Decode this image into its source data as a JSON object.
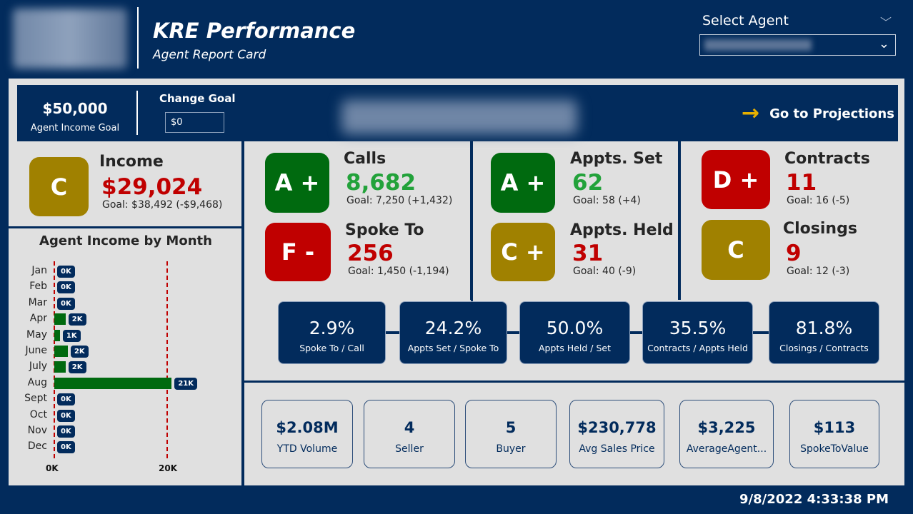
{
  "header": {
    "title": "KRE Performance",
    "subtitle": "Agent Report Card",
    "select_label": "Select Agent"
  },
  "goal_band": {
    "goal_value": "$50,000",
    "goal_label": "Agent Income Goal",
    "change_goal_label": "Change Goal",
    "change_goal_value": "$0",
    "projections_label": "Go to Projections"
  },
  "colors": {
    "navy": "#022b5c",
    "panel": "#e0e0e0",
    "grade_green": "#006a0f",
    "grade_gold": "#a08100",
    "grade_red": "#c00000",
    "value_green": "#22a23a",
    "value_red": "#c00000"
  },
  "metrics": {
    "income": {
      "grade": "C",
      "title": "Income",
      "value": "$29,024",
      "goal": "Goal: $38,492 (-$9,468)"
    },
    "calls": {
      "grade": "A +",
      "title": "Calls",
      "value": "8,682",
      "goal": "Goal: 7,250 (+1,432)"
    },
    "spoke_to": {
      "grade": "F -",
      "title": "Spoke To",
      "value": "256",
      "goal": "Goal: 1,450 (-1,194)"
    },
    "appts_set": {
      "grade": "A +",
      "title": "Appts. Set",
      "value": "62",
      "goal": "Goal: 58 (+4)"
    },
    "appts_held": {
      "grade": "C +",
      "title": "Appts. Held",
      "value": "31",
      "goal": "Goal: 40 (-9)"
    },
    "contracts": {
      "grade": "D +",
      "title": "Contracts",
      "value": "11",
      "goal": "Goal: 16 (-5)"
    },
    "closings": {
      "grade": "C",
      "title": "Closings",
      "value": "9",
      "goal": "Goal: 12 (-3)"
    }
  },
  "ratios": [
    {
      "value": "2.9%",
      "label": "Spoke To / Call"
    },
    {
      "value": "24.2%",
      "label": "Appts Set / Spoke To"
    },
    {
      "value": "50.0%",
      "label": "Appts Held / Set"
    },
    {
      "value": "35.5%",
      "label": "Contracts / Appts Held"
    },
    {
      "value": "81.8%",
      "label": "Closings / Contracts"
    }
  ],
  "kpis": [
    {
      "value": "$2.08M",
      "label": "YTD Volume"
    },
    {
      "value": "4",
      "label": "Seller"
    },
    {
      "value": "5",
      "label": "Buyer"
    },
    {
      "value": "$230,778",
      "label": "Avg Sales Price"
    },
    {
      "value": "$3,225",
      "label": "AverageAgent..."
    },
    {
      "value": "$113",
      "label": "SpokeToValue"
    }
  ],
  "chart_data": {
    "type": "bar",
    "orientation": "horizontal",
    "title": "Agent Income by Month",
    "categories": [
      "Jan",
      "Feb",
      "Mar",
      "Apr",
      "May",
      "June",
      "July",
      "Aug",
      "Sept",
      "Oct",
      "Nov",
      "Dec"
    ],
    "values": [
      0,
      0,
      0,
      2000,
      1000,
      2400,
      2000,
      20800,
      0,
      0,
      0,
      0
    ],
    "data_labels": [
      "0K",
      "0K",
      "0K",
      "2K",
      "1K",
      "2K",
      "2K",
      "21K",
      "0K",
      "0K",
      "0K",
      "0K"
    ],
    "x_ticks": [
      "0K",
      "20K"
    ],
    "x_tick_values": [
      0,
      20000
    ],
    "xlim": [
      0,
      20000
    ],
    "reference_lines": [
      0,
      20000
    ],
    "bar_color": "#006a0f"
  },
  "footer": {
    "timestamp": "9/8/2022 4:33:38 PM"
  }
}
